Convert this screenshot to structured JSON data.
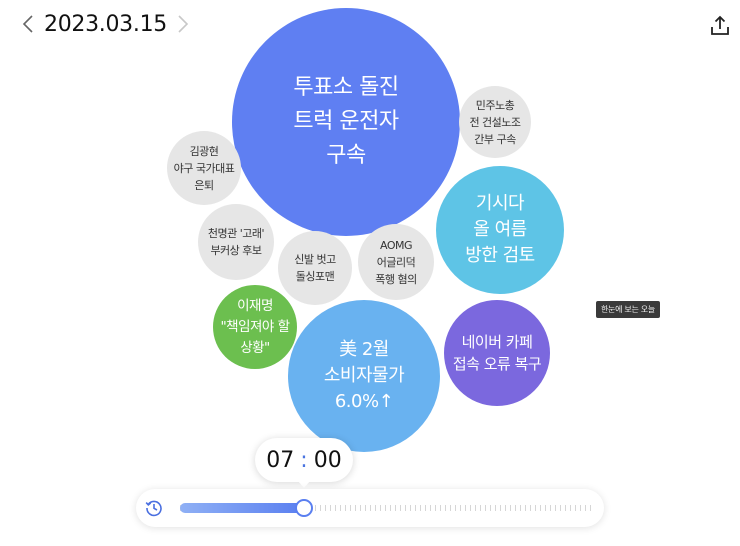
{
  "header": {
    "date": "2023.03.15"
  },
  "bubbles": [
    {
      "label": "투표소 돌진\n트럭 운전자\n구속",
      "color": "#5f7ff2"
    },
    {
      "label": "민주노총\n전 건설노조\n간부 구속",
      "color": "#e6e6e6"
    },
    {
      "label": "김광현\n야구 국가대표\n은퇴",
      "color": "#e6e6e6"
    },
    {
      "label": "기시다\n올 여름\n방한 검토",
      "color": "#5ec4e6"
    },
    {
      "label": "천명관 '고래'\n부커상 후보",
      "color": "#e6e6e6"
    },
    {
      "label": "신발 벗고\n돌싱포맨",
      "color": "#e6e6e6"
    },
    {
      "label": "AOMG\n어글리덕\n폭행 혐의",
      "color": "#e6e6e6"
    },
    {
      "label": "이재명\n\"책임져야 할\n상황\"",
      "color": "#6cbf4f"
    },
    {
      "label": "美 2월\n소비자물가\n6.0%↑",
      "color": "#69b2f0"
    },
    {
      "label": "네이버 카페\n접속 오류 복구",
      "color": "#7b68de"
    }
  ],
  "tooltip": "한눈에 보는 오늘",
  "time": {
    "hour": "07",
    "minute": "00",
    "separator": ":"
  },
  "timeline": {
    "progress": 0.3
  }
}
